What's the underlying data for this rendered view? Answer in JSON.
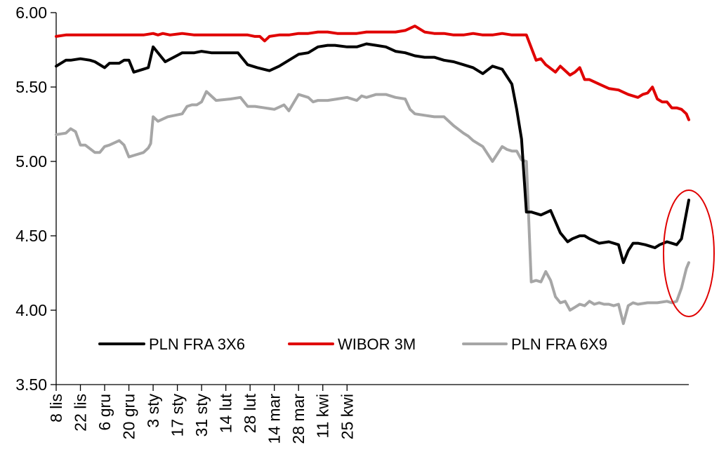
{
  "chart_data": {
    "type": "line",
    "title": "",
    "xlabel": "",
    "ylabel": "",
    "ylim": [
      3.5,
      6.0
    ],
    "y_ticks": [
      "3.50",
      "4.00",
      "4.50",
      "5.00",
      "5.50",
      "6.00"
    ],
    "x_ticks": [
      "8 lis",
      "22 lis",
      "6 gru",
      "20 gru",
      "3 sty",
      "17 sty",
      "31 sty",
      "14 lut",
      "28 lut",
      "14 mar",
      "28 mar",
      "11 kwi",
      "25 kwi"
    ],
    "grid": false,
    "legend_position": "bottom",
    "series": [
      {
        "name": "PLN FRA 3X6",
        "color": "#000000",
        "x": [
          0,
          2,
          4,
          6,
          10,
          14,
          16,
          20,
          22,
          26,
          28,
          30,
          32,
          34,
          36,
          38,
          40,
          45,
          52,
          57,
          60,
          64,
          66,
          72,
          75,
          79,
          83,
          88,
          92,
          100,
          104,
          108,
          112,
          115,
          120,
          124,
          128,
          132,
          136,
          140,
          144,
          148,
          152,
          156,
          160,
          164,
          168,
          172,
          176,
          180,
          184,
          188,
          190,
          192,
          193,
          194,
          196,
          200,
          204,
          208,
          209,
          211,
          213,
          216,
          218,
          220,
          224,
          228,
          232,
          234,
          236,
          238,
          240,
          243,
          245,
          247,
          249,
          252,
          254,
          256,
          258,
          261
        ],
        "y": [
          5.64,
          5.66,
          5.68,
          5.68,
          5.69,
          5.68,
          5.67,
          5.63,
          5.66,
          5.66,
          5.68,
          5.68,
          5.6,
          5.61,
          5.62,
          5.63,
          5.77,
          5.67,
          5.73,
          5.73,
          5.74,
          5.73,
          5.73,
          5.73,
          5.73,
          5.65,
          5.63,
          5.61,
          5.64,
          5.72,
          5.73,
          5.77,
          5.78,
          5.78,
          5.77,
          5.77,
          5.79,
          5.78,
          5.77,
          5.74,
          5.73,
          5.71,
          5.7,
          5.7,
          5.68,
          5.67,
          5.65,
          5.63,
          5.59,
          5.64,
          5.62,
          5.52,
          5.35,
          5.15,
          4.9,
          4.66,
          4.66,
          4.64,
          4.67,
          4.52,
          4.5,
          4.46,
          4.48,
          4.5,
          4.5,
          4.48,
          4.45,
          4.46,
          4.44,
          4.32,
          4.4,
          4.45,
          4.45,
          4.44,
          4.43,
          4.42,
          4.44,
          4.46,
          4.45,
          4.44,
          4.48,
          4.74
        ]
      },
      {
        "name": "WIBOR 3M",
        "color": "#e00000",
        "x": [
          0,
          4,
          10,
          20,
          30,
          36,
          40,
          42,
          44,
          47,
          52,
          57,
          60,
          64,
          68,
          72,
          76,
          79,
          82,
          84,
          86,
          88,
          92,
          96,
          100,
          104,
          108,
          112,
          116,
          120,
          124,
          128,
          132,
          136,
          140,
          144,
          148,
          152,
          156,
          160,
          164,
          168,
          172,
          176,
          180,
          184,
          188,
          192,
          194,
          198,
          200,
          202,
          206,
          208,
          212,
          214,
          216,
          218,
          220,
          224,
          228,
          232,
          236,
          240,
          242,
          244,
          246,
          248,
          250,
          252,
          254,
          256,
          258,
          260,
          261
        ],
        "y": [
          5.84,
          5.85,
          5.85,
          5.85,
          5.85,
          5.85,
          5.86,
          5.85,
          5.86,
          5.85,
          5.86,
          5.85,
          5.85,
          5.85,
          5.85,
          5.85,
          5.85,
          5.85,
          5.84,
          5.84,
          5.81,
          5.84,
          5.85,
          5.85,
          5.86,
          5.86,
          5.87,
          5.87,
          5.86,
          5.86,
          5.86,
          5.87,
          5.87,
          5.87,
          5.87,
          5.88,
          5.91,
          5.87,
          5.86,
          5.86,
          5.85,
          5.85,
          5.86,
          5.85,
          5.85,
          5.86,
          5.85,
          5.85,
          5.85,
          5.68,
          5.69,
          5.65,
          5.6,
          5.64,
          5.58,
          5.6,
          5.63,
          5.55,
          5.55,
          5.52,
          5.49,
          5.48,
          5.45,
          5.43,
          5.45,
          5.46,
          5.5,
          5.42,
          5.4,
          5.4,
          5.36,
          5.36,
          5.35,
          5.32,
          5.28
        ]
      },
      {
        "name": "PLN FRA 6X9",
        "color": "#a6a6a6",
        "x": [
          0,
          4,
          6,
          8,
          10,
          12,
          16,
          18,
          20,
          22,
          26,
          28,
          30,
          32,
          36,
          38,
          39,
          40,
          42,
          46,
          52,
          54,
          56,
          58,
          60,
          62,
          66,
          72,
          76,
          79,
          82,
          86,
          90,
          94,
          96,
          100,
          104,
          106,
          108,
          112,
          116,
          120,
          124,
          126,
          128,
          132,
          136,
          140,
          144,
          146,
          148,
          152,
          156,
          160,
          164,
          168,
          170,
          172,
          176,
          180,
          184,
          186,
          188,
          190,
          192,
          194,
          196,
          198,
          200,
          202,
          204,
          206,
          208,
          210,
          212,
          214,
          216,
          218,
          220,
          222,
          224,
          226,
          228,
          230,
          232,
          234,
          236,
          238,
          240,
          244,
          248,
          252,
          254,
          256,
          258,
          260,
          261
        ],
        "y": [
          5.18,
          5.19,
          5.22,
          5.2,
          5.11,
          5.11,
          5.06,
          5.06,
          5.1,
          5.11,
          5.14,
          5.11,
          5.03,
          5.04,
          5.06,
          5.09,
          5.12,
          5.3,
          5.27,
          5.3,
          5.32,
          5.37,
          5.38,
          5.38,
          5.4,
          5.47,
          5.41,
          5.42,
          5.43,
          5.37,
          5.37,
          5.36,
          5.35,
          5.38,
          5.34,
          5.45,
          5.43,
          5.4,
          5.41,
          5.41,
          5.42,
          5.43,
          5.41,
          5.44,
          5.43,
          5.45,
          5.45,
          5.43,
          5.42,
          5.35,
          5.32,
          5.31,
          5.3,
          5.3,
          5.24,
          5.19,
          5.17,
          5.14,
          5.1,
          5.0,
          5.1,
          5.08,
          5.07,
          5.07,
          5.01,
          5.0,
          4.19,
          4.2,
          4.19,
          4.26,
          4.2,
          4.09,
          4.05,
          4.06,
          4.0,
          4.02,
          4.04,
          4.03,
          4.06,
          4.04,
          4.05,
          4.04,
          4.04,
          4.03,
          4.04,
          3.91,
          4.03,
          4.05,
          4.04,
          4.05,
          4.05,
          4.06,
          4.05,
          4.06,
          4.15,
          4.28,
          4.32
        ]
      }
    ],
    "annotations": [
      {
        "type": "ellipse",
        "color": "#e00000",
        "description": "red ellipse around last data points"
      }
    ]
  }
}
